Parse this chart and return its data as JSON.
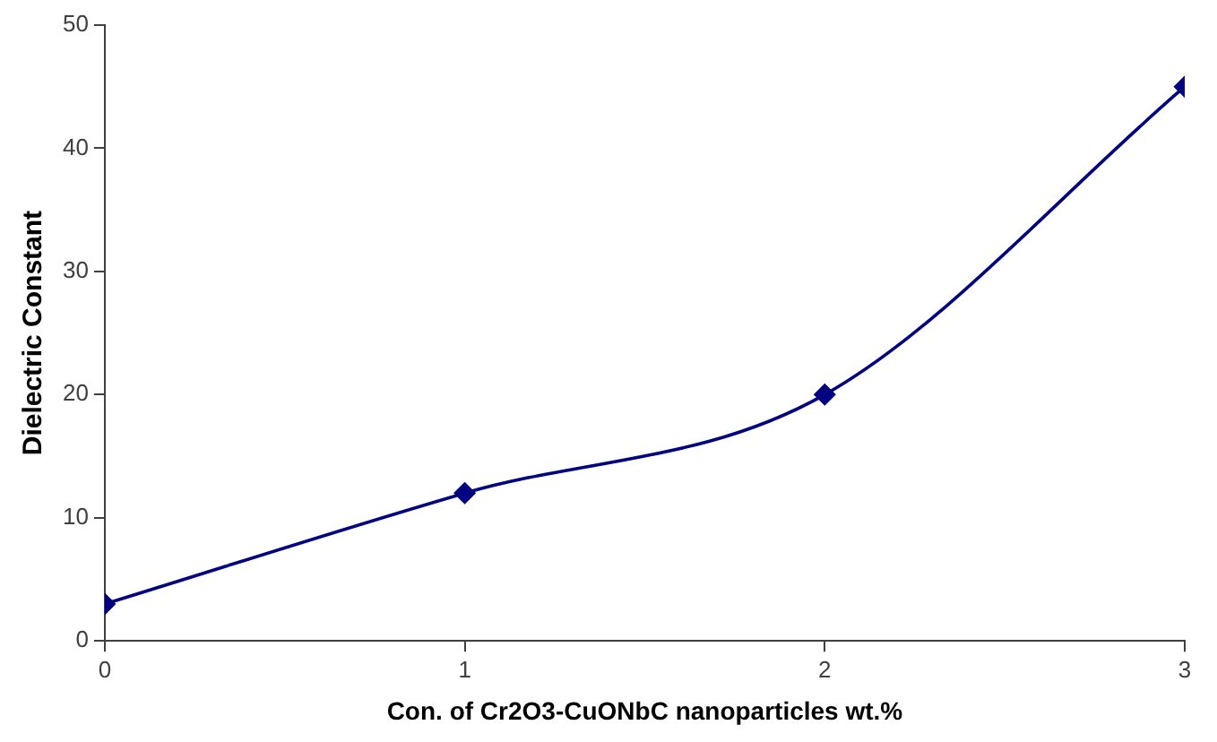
{
  "chart_data": {
    "type": "line",
    "xlabel": "Con. of Cr2O3-CuONbC nanoparticles wt.%",
    "ylabel": "Dielectric Constant",
    "x": [
      0,
      1,
      2,
      3
    ],
    "series": [
      {
        "color": "#000080",
        "values": [
          3,
          12,
          20,
          45
        ]
      }
    ],
    "xlim": [
      0,
      3
    ],
    "xticks": [
      0,
      1,
      2,
      3
    ],
    "ylim": [
      0,
      50
    ],
    "yticks": [
      0,
      10,
      20,
      30,
      40,
      50
    ],
    "grid": false,
    "legend": false,
    "marker": "diamond",
    "line_style": "solid"
  }
}
